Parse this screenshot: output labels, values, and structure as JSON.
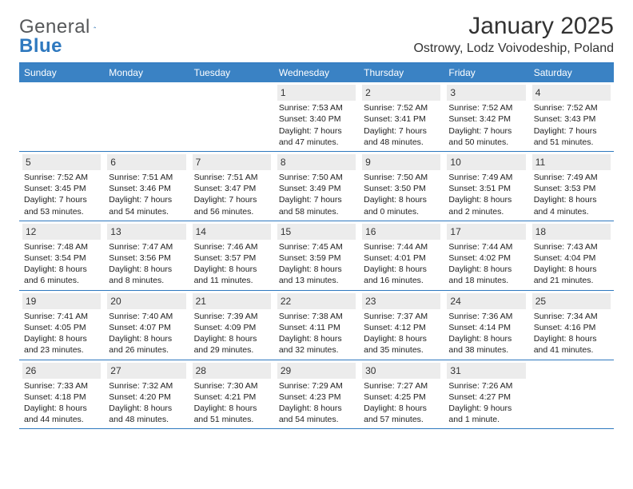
{
  "logo": {
    "text1": "General",
    "text2": "Blue"
  },
  "title": "January 2025",
  "location": "Ostrowy, Lodz Voivodeship, Poland",
  "colors": {
    "header_bg": "#3a82c4",
    "border": "#2f79bf",
    "daynum_bg": "#ececec",
    "logo_gray": "#56585a",
    "logo_blue": "#2f79bf"
  },
  "weekdays": [
    "Sunday",
    "Monday",
    "Tuesday",
    "Wednesday",
    "Thursday",
    "Friday",
    "Saturday"
  ],
  "weeks": [
    [
      null,
      null,
      null,
      {
        "n": "1",
        "sr": "Sunrise: 7:53 AM",
        "ss": "Sunset: 3:40 PM",
        "d1": "Daylight: 7 hours",
        "d2": "and 47 minutes."
      },
      {
        "n": "2",
        "sr": "Sunrise: 7:52 AM",
        "ss": "Sunset: 3:41 PM",
        "d1": "Daylight: 7 hours",
        "d2": "and 48 minutes."
      },
      {
        "n": "3",
        "sr": "Sunrise: 7:52 AM",
        "ss": "Sunset: 3:42 PM",
        "d1": "Daylight: 7 hours",
        "d2": "and 50 minutes."
      },
      {
        "n": "4",
        "sr": "Sunrise: 7:52 AM",
        "ss": "Sunset: 3:43 PM",
        "d1": "Daylight: 7 hours",
        "d2": "and 51 minutes."
      }
    ],
    [
      {
        "n": "5",
        "sr": "Sunrise: 7:52 AM",
        "ss": "Sunset: 3:45 PM",
        "d1": "Daylight: 7 hours",
        "d2": "and 53 minutes."
      },
      {
        "n": "6",
        "sr": "Sunrise: 7:51 AM",
        "ss": "Sunset: 3:46 PM",
        "d1": "Daylight: 7 hours",
        "d2": "and 54 minutes."
      },
      {
        "n": "7",
        "sr": "Sunrise: 7:51 AM",
        "ss": "Sunset: 3:47 PM",
        "d1": "Daylight: 7 hours",
        "d2": "and 56 minutes."
      },
      {
        "n": "8",
        "sr": "Sunrise: 7:50 AM",
        "ss": "Sunset: 3:49 PM",
        "d1": "Daylight: 7 hours",
        "d2": "and 58 minutes."
      },
      {
        "n": "9",
        "sr": "Sunrise: 7:50 AM",
        "ss": "Sunset: 3:50 PM",
        "d1": "Daylight: 8 hours",
        "d2": "and 0 minutes."
      },
      {
        "n": "10",
        "sr": "Sunrise: 7:49 AM",
        "ss": "Sunset: 3:51 PM",
        "d1": "Daylight: 8 hours",
        "d2": "and 2 minutes."
      },
      {
        "n": "11",
        "sr": "Sunrise: 7:49 AM",
        "ss": "Sunset: 3:53 PM",
        "d1": "Daylight: 8 hours",
        "d2": "and 4 minutes."
      }
    ],
    [
      {
        "n": "12",
        "sr": "Sunrise: 7:48 AM",
        "ss": "Sunset: 3:54 PM",
        "d1": "Daylight: 8 hours",
        "d2": "and 6 minutes."
      },
      {
        "n": "13",
        "sr": "Sunrise: 7:47 AM",
        "ss": "Sunset: 3:56 PM",
        "d1": "Daylight: 8 hours",
        "d2": "and 8 minutes."
      },
      {
        "n": "14",
        "sr": "Sunrise: 7:46 AM",
        "ss": "Sunset: 3:57 PM",
        "d1": "Daylight: 8 hours",
        "d2": "and 11 minutes."
      },
      {
        "n": "15",
        "sr": "Sunrise: 7:45 AM",
        "ss": "Sunset: 3:59 PM",
        "d1": "Daylight: 8 hours",
        "d2": "and 13 minutes."
      },
      {
        "n": "16",
        "sr": "Sunrise: 7:44 AM",
        "ss": "Sunset: 4:01 PM",
        "d1": "Daylight: 8 hours",
        "d2": "and 16 minutes."
      },
      {
        "n": "17",
        "sr": "Sunrise: 7:44 AM",
        "ss": "Sunset: 4:02 PM",
        "d1": "Daylight: 8 hours",
        "d2": "and 18 minutes."
      },
      {
        "n": "18",
        "sr": "Sunrise: 7:43 AM",
        "ss": "Sunset: 4:04 PM",
        "d1": "Daylight: 8 hours",
        "d2": "and 21 minutes."
      }
    ],
    [
      {
        "n": "19",
        "sr": "Sunrise: 7:41 AM",
        "ss": "Sunset: 4:05 PM",
        "d1": "Daylight: 8 hours",
        "d2": "and 23 minutes."
      },
      {
        "n": "20",
        "sr": "Sunrise: 7:40 AM",
        "ss": "Sunset: 4:07 PM",
        "d1": "Daylight: 8 hours",
        "d2": "and 26 minutes."
      },
      {
        "n": "21",
        "sr": "Sunrise: 7:39 AM",
        "ss": "Sunset: 4:09 PM",
        "d1": "Daylight: 8 hours",
        "d2": "and 29 minutes."
      },
      {
        "n": "22",
        "sr": "Sunrise: 7:38 AM",
        "ss": "Sunset: 4:11 PM",
        "d1": "Daylight: 8 hours",
        "d2": "and 32 minutes."
      },
      {
        "n": "23",
        "sr": "Sunrise: 7:37 AM",
        "ss": "Sunset: 4:12 PM",
        "d1": "Daylight: 8 hours",
        "d2": "and 35 minutes."
      },
      {
        "n": "24",
        "sr": "Sunrise: 7:36 AM",
        "ss": "Sunset: 4:14 PM",
        "d1": "Daylight: 8 hours",
        "d2": "and 38 minutes."
      },
      {
        "n": "25",
        "sr": "Sunrise: 7:34 AM",
        "ss": "Sunset: 4:16 PM",
        "d1": "Daylight: 8 hours",
        "d2": "and 41 minutes."
      }
    ],
    [
      {
        "n": "26",
        "sr": "Sunrise: 7:33 AM",
        "ss": "Sunset: 4:18 PM",
        "d1": "Daylight: 8 hours",
        "d2": "and 44 minutes."
      },
      {
        "n": "27",
        "sr": "Sunrise: 7:32 AM",
        "ss": "Sunset: 4:20 PM",
        "d1": "Daylight: 8 hours",
        "d2": "and 48 minutes."
      },
      {
        "n": "28",
        "sr": "Sunrise: 7:30 AM",
        "ss": "Sunset: 4:21 PM",
        "d1": "Daylight: 8 hours",
        "d2": "and 51 minutes."
      },
      {
        "n": "29",
        "sr": "Sunrise: 7:29 AM",
        "ss": "Sunset: 4:23 PM",
        "d1": "Daylight: 8 hours",
        "d2": "and 54 minutes."
      },
      {
        "n": "30",
        "sr": "Sunrise: 7:27 AM",
        "ss": "Sunset: 4:25 PM",
        "d1": "Daylight: 8 hours",
        "d2": "and 57 minutes."
      },
      {
        "n": "31",
        "sr": "Sunrise: 7:26 AM",
        "ss": "Sunset: 4:27 PM",
        "d1": "Daylight: 9 hours",
        "d2": "and 1 minute."
      },
      null
    ]
  ]
}
